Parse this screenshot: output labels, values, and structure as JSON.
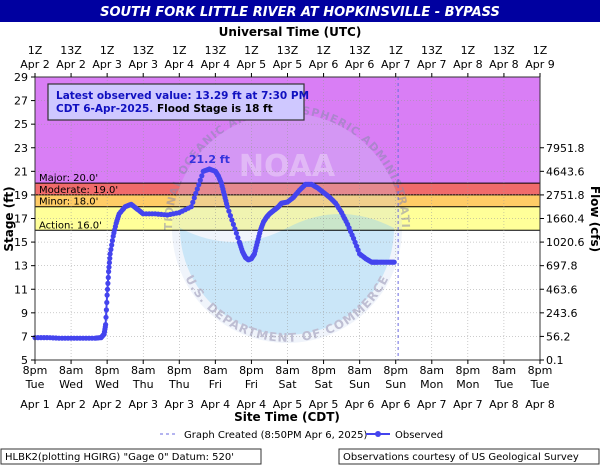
{
  "title": "SOUTH FORK LITTLE RIVER AT HOPKINSVILLE - BYPASS",
  "top_axis_title": "Universal Time (UTC)",
  "bottom_axis_title": "Site Time (CDT)",
  "left_axis_title": "Stage (ft)",
  "right_axis_title": "Flow (cfs)",
  "top_ticks": [
    [
      "1Z",
      "Apr 2"
    ],
    [
      "13Z",
      "Apr 2"
    ],
    [
      "1Z",
      "Apr 3"
    ],
    [
      "13Z",
      "Apr 3"
    ],
    [
      "1Z",
      "Apr 4"
    ],
    [
      "13Z",
      "Apr 4"
    ],
    [
      "1Z",
      "Apr 5"
    ],
    [
      "13Z",
      "Apr 5"
    ],
    [
      "1Z",
      "Apr 6"
    ],
    [
      "13Z",
      "Apr 6"
    ],
    [
      "1Z",
      "Apr 7"
    ],
    [
      "13Z",
      "Apr 7"
    ],
    [
      "1Z",
      "Apr 8"
    ],
    [
      "13Z",
      "Apr 8"
    ],
    [
      "1Z",
      "Apr 9"
    ]
  ],
  "bottom_ticks": [
    [
      "8pm",
      "Tue",
      "Apr 1"
    ],
    [
      "8am",
      "Wed",
      "Apr 2"
    ],
    [
      "8pm",
      "Wed",
      "Apr 2"
    ],
    [
      "8am",
      "Thu",
      "Apr 3"
    ],
    [
      "8pm",
      "Thu",
      "Apr 3"
    ],
    [
      "8am",
      "Fri",
      "Apr 4"
    ],
    [
      "8pm",
      "Fri",
      "Apr 4"
    ],
    [
      "8am",
      "Sat",
      "Apr 5"
    ],
    [
      "8pm",
      "Sat",
      "Apr 5"
    ],
    [
      "8am",
      "Sun",
      "Apr 6"
    ],
    [
      "8pm",
      "Sun",
      "Apr 6"
    ],
    [
      "8am",
      "Mon",
      "Apr 7"
    ],
    [
      "8pm",
      "Mon",
      "Apr 7"
    ],
    [
      "8am",
      "Tue",
      "Apr 8"
    ],
    [
      "8pm",
      "Tue",
      "Apr 8"
    ]
  ],
  "stage_ticks": [
    5,
    7,
    9,
    11,
    13,
    15,
    17,
    19,
    21,
    23,
    25,
    27,
    29
  ],
  "flow_ticks": [
    [
      "0.1",
      5
    ],
    [
      "56.2",
      7
    ],
    [
      "243.6",
      9
    ],
    [
      "463.6",
      11
    ],
    [
      "697.8",
      13
    ],
    [
      "1020.6",
      15
    ],
    [
      "1660.4",
      17
    ],
    [
      "2751.8",
      19
    ],
    [
      "4643.6",
      21
    ],
    [
      "7951.8",
      23
    ]
  ],
  "info_box": {
    "line1": "Latest observed value: 13.29 ft at 7:30 PM",
    "line2": "CDT 6-Apr-2025.",
    "line2_bold": " Flood Stage is 18 ft"
  },
  "peak_label": "21.2 ft",
  "watermark_text": "NATIONAL OCEANIC AND ATMOSPHERIC ADMINISTRATION",
  "watermark_bottom": "U.S. DEPARTMENT OF COMMERCE",
  "watermark_logo": "NOAA",
  "legend": {
    "created": "Graph Created (8:50PM Apr 6, 2025)",
    "observed": "Observed"
  },
  "footer": {
    "left": "HLBK2(plotting HGIRG) \"Gage 0\" Datum: 520'",
    "right": "Observations courtesy of US Geological Survey"
  },
  "colors": {
    "title_bg": "#0000a0",
    "major": "#d97ef5",
    "moderate": "#f06b6b",
    "minor": "#ffcc66",
    "action": "#ffff99",
    "series": "#4444ee",
    "now_line": "#6a6ae0"
  },
  "chart_data": {
    "type": "line",
    "ylim": [
      5,
      29
    ],
    "x_unit": "hours since Apr 1 8pm CDT",
    "xlim": [
      0,
      168
    ],
    "thresholds": [
      {
        "name": "Major",
        "label": "Major: 20.0'",
        "value": 20.0
      },
      {
        "name": "Moderate",
        "label": "Moderate: 19.0'",
        "value": 19.0
      },
      {
        "name": "Minor",
        "label": "Minor: 18.0'",
        "value": 18.0
      },
      {
        "name": "Action",
        "label": "Action: 16.0'",
        "value": 16.0
      }
    ],
    "graph_created_x": 120.8,
    "series": [
      {
        "name": "Observed",
        "x": [
          0,
          4,
          8,
          12,
          16,
          20,
          22,
          23,
          23.5,
          24,
          24.5,
          25,
          26,
          27,
          28,
          30,
          32,
          34,
          36,
          40,
          44,
          48,
          52,
          54,
          56,
          58,
          60,
          61,
          62,
          63,
          64,
          66,
          68,
          69,
          70,
          71,
          72,
          73,
          74,
          75,
          76,
          77,
          78,
          79,
          80,
          81,
          82,
          84,
          86,
          88,
          90,
          92,
          94,
          96,
          98,
          100,
          102,
          104,
          106,
          108,
          110,
          112,
          113,
          114,
          116,
          118,
          119.5
        ],
        "y": [
          6.9,
          6.9,
          6.85,
          6.85,
          6.85,
          6.85,
          6.9,
          7.2,
          8.0,
          10.5,
          12.5,
          14.0,
          15.5,
          16.6,
          17.4,
          18.0,
          18.2,
          17.8,
          17.4,
          17.4,
          17.3,
          17.5,
          18.0,
          19.5,
          21.0,
          21.2,
          21.0,
          20.6,
          20.0,
          19.0,
          18.0,
          16.5,
          15.0,
          14.2,
          13.7,
          13.5,
          13.6,
          14.0,
          15.0,
          16.0,
          16.7,
          17.1,
          17.4,
          17.6,
          17.8,
          18.0,
          18.3,
          18.4,
          18.8,
          19.4,
          19.9,
          19.9,
          19.6,
          19.2,
          18.8,
          18.3,
          17.5,
          16.5,
          15.3,
          14.0,
          13.6,
          13.29,
          13.29,
          13.29,
          13.29,
          13.29,
          13.29
        ]
      }
    ]
  }
}
